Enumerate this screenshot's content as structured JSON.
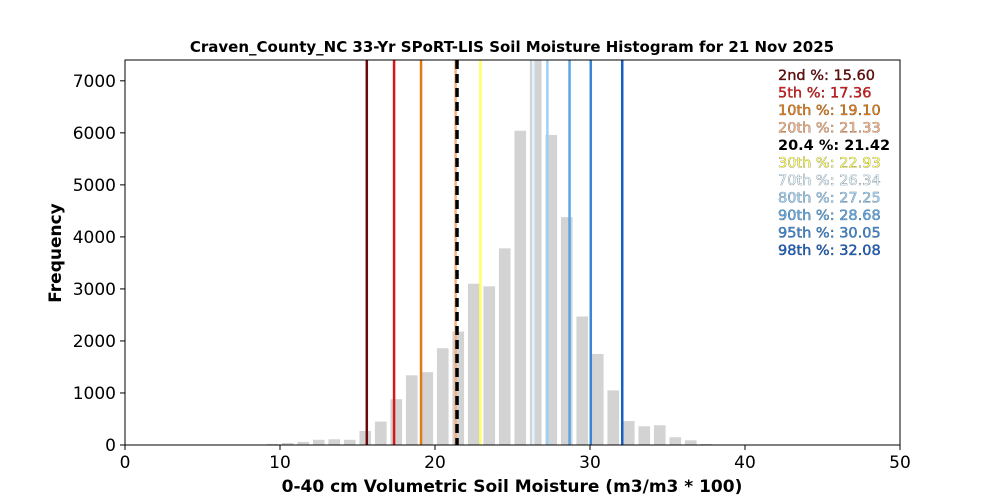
{
  "chart_data": {
    "type": "bar",
    "title": "Craven_County_NC 33-Yr SPoRT-LIS Soil Moisture Histogram for 21 Nov 2025",
    "xlabel": "0-40 cm Volumetric Soil Moisture (m3/m3 * 100)",
    "ylabel": "Frequency",
    "xlim": [
      0,
      50
    ],
    "ylim": [
      0,
      7400
    ],
    "xticks": [
      0,
      10,
      20,
      30,
      40,
      50
    ],
    "yticks": [
      0,
      1000,
      2000,
      3000,
      4000,
      5000,
      6000,
      7000
    ],
    "grid": false,
    "legend_position": "top-right",
    "bar_color": "#d3d3d3",
    "bar_width": 0.75,
    "bars": [
      {
        "x": 5.5,
        "value": 5
      },
      {
        "x": 7.5,
        "value": 8
      },
      {
        "x": 8.5,
        "value": 10
      },
      {
        "x": 9.5,
        "value": 20
      },
      {
        "x": 10.5,
        "value": 40
      },
      {
        "x": 11.5,
        "value": 60
      },
      {
        "x": 12.5,
        "value": 100
      },
      {
        "x": 13.5,
        "value": 110
      },
      {
        "x": 14.5,
        "value": 100
      },
      {
        "x": 15.5,
        "value": 270
      },
      {
        "x": 16.5,
        "value": 450
      },
      {
        "x": 17.5,
        "value": 880
      },
      {
        "x": 18.5,
        "value": 1340
      },
      {
        "x": 19.5,
        "value": 1400
      },
      {
        "x": 20.5,
        "value": 1860
      },
      {
        "x": 21.5,
        "value": 2180
      },
      {
        "x": 22.5,
        "value": 3100
      },
      {
        "x": 23.5,
        "value": 3050
      },
      {
        "x": 24.5,
        "value": 3780
      },
      {
        "x": 25.5,
        "value": 6040
      },
      {
        "x": 26.5,
        "value": 7400
      },
      {
        "x": 27.5,
        "value": 5960
      },
      {
        "x": 28.5,
        "value": 4380
      },
      {
        "x": 29.5,
        "value": 2470
      },
      {
        "x": 30.5,
        "value": 1750
      },
      {
        "x": 31.5,
        "value": 1050
      },
      {
        "x": 32.5,
        "value": 460
      },
      {
        "x": 33.5,
        "value": 360
      },
      {
        "x": 34.5,
        "value": 380
      },
      {
        "x": 35.5,
        "value": 150
      },
      {
        "x": 36.5,
        "value": 90
      },
      {
        "x": 37.5,
        "value": 20
      }
    ],
    "percentile_lines": [
      {
        "label": "2nd %: 15.60",
        "value": 15.6,
        "color": "#6b0a0a",
        "style": "solid"
      },
      {
        "label": "5th %: 17.36",
        "value": 17.36,
        "color": "#d71818",
        "style": "solid"
      },
      {
        "label": "10th %: 19.10",
        "value": 19.1,
        "color": "#e07b14",
        "style": "solid"
      },
      {
        "label": "20th %: 21.33",
        "value": 21.33,
        "color": "#f4b183",
        "style": "solid"
      },
      {
        "label": "20.4 %: 21.42",
        "value": 21.42,
        "color": "#000000",
        "style": "dashed"
      },
      {
        "label": "30th %: 22.93",
        "value": 22.93,
        "color": "#ffff66",
        "style": "solid"
      },
      {
        "label": "70th %: 26.34",
        "value": 26.34,
        "color": "#e0f4ff",
        "style": "solid"
      },
      {
        "label": "80th %: 27.25",
        "value": 27.25,
        "color": "#9dd0f5",
        "style": "solid"
      },
      {
        "label": "90th %: 28.68",
        "value": 28.68,
        "color": "#5aa6e6",
        "style": "solid"
      },
      {
        "label": "95th %: 30.05",
        "value": 30.05,
        "color": "#3a86d6",
        "style": "solid"
      },
      {
        "label": "98th %: 32.08",
        "value": 32.08,
        "color": "#1a5ec4",
        "style": "solid"
      }
    ]
  }
}
